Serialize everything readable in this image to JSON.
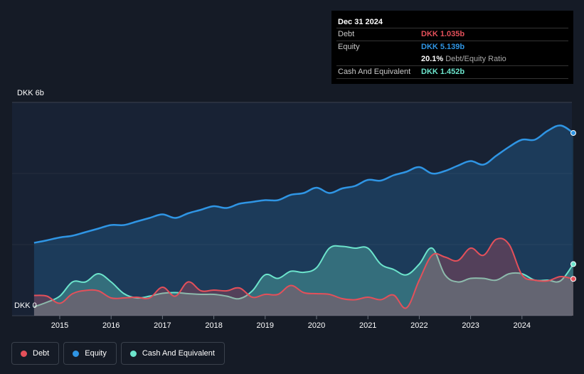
{
  "tooltip": {
    "date": "Dec 31 2024",
    "debt_label": "Debt",
    "debt_value": "DKK 1.035b",
    "equity_label": "Equity",
    "equity_value": "DKK 5.139b",
    "ratio_value": "20.1%",
    "ratio_label": "Debt/Equity Ratio",
    "cash_label": "Cash And Equivalent",
    "cash_value": "DKK 1.452b"
  },
  "axis": {
    "y_top_label": "DKK 6b",
    "y_bottom_label": "DKK 0"
  },
  "legend": [
    {
      "label": "Debt",
      "color": "#e4505a"
    },
    {
      "label": "Equity",
      "color": "#2f95e4"
    },
    {
      "label": "Cash And Equivalent",
      "color": "#6ce4cc"
    }
  ],
  "colors": {
    "background": "#151b26",
    "debt": "#e4505a",
    "equity": "#2f95e4",
    "cash": "#6ce4cc"
  },
  "chart_data": {
    "type": "area",
    "unit": "DKK b",
    "ylim": [
      0,
      6
    ],
    "xlim": [
      2014.5,
      2025.0
    ],
    "x_ticks": [
      "2015",
      "2016",
      "2017",
      "2018",
      "2019",
      "2020",
      "2021",
      "2022",
      "2023",
      "2024"
    ],
    "grid": true,
    "series": [
      {
        "name": "Debt",
        "color": "#e4505a",
        "points": [
          [
            2014.5,
            0.57
          ],
          [
            2014.75,
            0.55
          ],
          [
            2015.0,
            0.35
          ],
          [
            2015.25,
            0.62
          ],
          [
            2015.5,
            0.71
          ],
          [
            2015.75,
            0.7
          ],
          [
            2016.0,
            0.5
          ],
          [
            2016.25,
            0.5
          ],
          [
            2016.5,
            0.52
          ],
          [
            2016.75,
            0.5
          ],
          [
            2017.0,
            0.8
          ],
          [
            2017.25,
            0.55
          ],
          [
            2017.5,
            0.95
          ],
          [
            2017.75,
            0.7
          ],
          [
            2018.0,
            0.72
          ],
          [
            2018.25,
            0.7
          ],
          [
            2018.5,
            0.78
          ],
          [
            2018.75,
            0.52
          ],
          [
            2019.0,
            0.6
          ],
          [
            2019.25,
            0.6
          ],
          [
            2019.5,
            0.85
          ],
          [
            2019.75,
            0.65
          ],
          [
            2020.0,
            0.62
          ],
          [
            2020.25,
            0.6
          ],
          [
            2020.5,
            0.48
          ],
          [
            2020.75,
            0.45
          ],
          [
            2021.0,
            0.52
          ],
          [
            2021.25,
            0.45
          ],
          [
            2021.5,
            0.58
          ],
          [
            2021.75,
            0.22
          ],
          [
            2022.0,
            1.0
          ],
          [
            2022.25,
            1.7
          ],
          [
            2022.5,
            1.65
          ],
          [
            2022.75,
            1.55
          ],
          [
            2023.0,
            1.9
          ],
          [
            2023.25,
            1.7
          ],
          [
            2023.5,
            2.15
          ],
          [
            2023.75,
            2.0
          ],
          [
            2024.0,
            1.15
          ],
          [
            2024.25,
            1.0
          ],
          [
            2024.5,
            0.98
          ],
          [
            2024.75,
            1.1
          ],
          [
            2025.0,
            1.035
          ]
        ]
      },
      {
        "name": "Equity",
        "color": "#2f95e4",
        "points": [
          [
            2014.5,
            2.05
          ],
          [
            2014.75,
            2.12
          ],
          [
            2015.0,
            2.2
          ],
          [
            2015.25,
            2.25
          ],
          [
            2015.5,
            2.35
          ],
          [
            2015.75,
            2.45
          ],
          [
            2016.0,
            2.55
          ],
          [
            2016.25,
            2.55
          ],
          [
            2016.5,
            2.65
          ],
          [
            2016.75,
            2.75
          ],
          [
            2017.0,
            2.85
          ],
          [
            2017.25,
            2.75
          ],
          [
            2017.5,
            2.88
          ],
          [
            2017.75,
            2.98
          ],
          [
            2018.0,
            3.08
          ],
          [
            2018.25,
            3.03
          ],
          [
            2018.5,
            3.15
          ],
          [
            2018.75,
            3.2
          ],
          [
            2019.0,
            3.25
          ],
          [
            2019.25,
            3.25
          ],
          [
            2019.5,
            3.4
          ],
          [
            2019.75,
            3.45
          ],
          [
            2020.0,
            3.6
          ],
          [
            2020.25,
            3.45
          ],
          [
            2020.5,
            3.58
          ],
          [
            2020.75,
            3.65
          ],
          [
            2021.0,
            3.82
          ],
          [
            2021.25,
            3.8
          ],
          [
            2021.5,
            3.95
          ],
          [
            2021.75,
            4.05
          ],
          [
            2022.0,
            4.18
          ],
          [
            2022.25,
            4.0
          ],
          [
            2022.5,
            4.07
          ],
          [
            2022.75,
            4.22
          ],
          [
            2023.0,
            4.35
          ],
          [
            2023.25,
            4.25
          ],
          [
            2023.5,
            4.5
          ],
          [
            2023.75,
            4.75
          ],
          [
            2024.0,
            4.95
          ],
          [
            2024.25,
            4.95
          ],
          [
            2024.5,
            5.2
          ],
          [
            2024.75,
            5.35
          ],
          [
            2025.0,
            5.139
          ]
        ]
      },
      {
        "name": "Cash And Equivalent",
        "color": "#6ce4cc",
        "points": [
          [
            2014.5,
            0.25
          ],
          [
            2014.75,
            0.38
          ],
          [
            2015.0,
            0.55
          ],
          [
            2015.25,
            0.95
          ],
          [
            2015.5,
            0.95
          ],
          [
            2015.75,
            1.18
          ],
          [
            2016.0,
            0.95
          ],
          [
            2016.25,
            0.62
          ],
          [
            2016.5,
            0.5
          ],
          [
            2016.75,
            0.55
          ],
          [
            2017.0,
            0.63
          ],
          [
            2017.25,
            0.65
          ],
          [
            2017.5,
            0.62
          ],
          [
            2017.75,
            0.6
          ],
          [
            2018.0,
            0.6
          ],
          [
            2018.25,
            0.55
          ],
          [
            2018.5,
            0.48
          ],
          [
            2018.75,
            0.7
          ],
          [
            2019.0,
            1.15
          ],
          [
            2019.25,
            1.05
          ],
          [
            2019.5,
            1.25
          ],
          [
            2019.75,
            1.22
          ],
          [
            2020.0,
            1.35
          ],
          [
            2020.25,
            1.9
          ],
          [
            2020.5,
            1.95
          ],
          [
            2020.75,
            1.9
          ],
          [
            2021.0,
            1.9
          ],
          [
            2021.25,
            1.45
          ],
          [
            2021.5,
            1.3
          ],
          [
            2021.75,
            1.15
          ],
          [
            2022.0,
            1.45
          ],
          [
            2022.25,
            1.9
          ],
          [
            2022.5,
            1.15
          ],
          [
            2022.75,
            0.95
          ],
          [
            2023.0,
            1.05
          ],
          [
            2023.25,
            1.05
          ],
          [
            2023.5,
            1.0
          ],
          [
            2023.75,
            1.18
          ],
          [
            2024.0,
            1.18
          ],
          [
            2024.25,
            1.0
          ],
          [
            2024.5,
            1.0
          ],
          [
            2024.75,
            0.98
          ],
          [
            2025.0,
            1.452
          ]
        ]
      }
    ]
  }
}
